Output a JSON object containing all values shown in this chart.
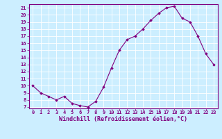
{
  "x": [
    0,
    1,
    2,
    3,
    4,
    5,
    6,
    7,
    8,
    9,
    10,
    11,
    12,
    13,
    14,
    15,
    16,
    17,
    18,
    19,
    20,
    21,
    22,
    23
  ],
  "y": [
    10,
    9,
    8.5,
    8,
    8.5,
    7.5,
    7.2,
    7.0,
    7.8,
    9.8,
    12.5,
    15.0,
    16.5,
    17.0,
    18.0,
    19.2,
    20.2,
    21.0,
    21.2,
    19.5,
    19.0,
    17.0,
    14.5,
    13.0
  ],
  "xlim": [
    -0.5,
    23.5
  ],
  "ylim": [
    6.8,
    21.5
  ],
  "yticks": [
    7,
    8,
    9,
    10,
    11,
    12,
    13,
    14,
    15,
    16,
    17,
    18,
    19,
    20,
    21
  ],
  "xticks": [
    0,
    1,
    2,
    3,
    4,
    5,
    6,
    7,
    8,
    9,
    10,
    11,
    12,
    13,
    14,
    15,
    16,
    17,
    18,
    19,
    20,
    21,
    22,
    23
  ],
  "xlabel": "Windchill (Refroidissement éolien,°C)",
  "line_color": "#800080",
  "marker": "D",
  "marker_size": 1.8,
  "bg_color": "#cceeff",
  "grid_color": "#ffffff",
  "tick_fontsize": 5.0,
  "xlabel_fontsize": 6.0
}
